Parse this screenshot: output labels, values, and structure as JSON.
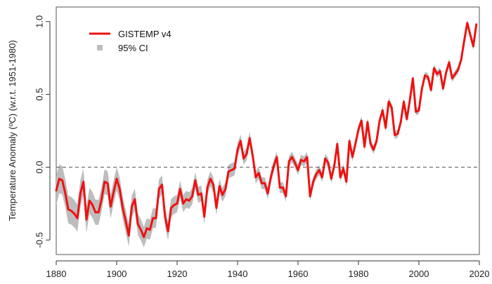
{
  "chart_data": {
    "type": "line",
    "title": "",
    "xlabel": "",
    "ylabel": "Temperature Anomaly (ºC) (w.r.t. 1951-1980)",
    "xlim": [
      1880,
      2020
    ],
    "ylim": [
      -0.6,
      1.1
    ],
    "xticks": [
      1880,
      1900,
      1920,
      1940,
      1960,
      1980,
      2000,
      2020
    ],
    "xtick_labels": [
      "1880",
      "1900",
      "1920",
      "1940",
      "1960",
      "1980",
      "2000",
      "2020"
    ],
    "yticks": [
      -0.5,
      0.0,
      0.5,
      1.0
    ],
    "ytick_labels": [
      "-0.5",
      "0.0",
      "0.5",
      "1.0"
    ],
    "reference_line": {
      "y": 0.0,
      "style": "dashed"
    },
    "legend": {
      "placement": "top-left",
      "entries": [
        {
          "label": "GISTEMP v4",
          "kind": "line",
          "color": "#ee1111"
        },
        {
          "label": "95% CI",
          "kind": "band",
          "color": "#bdbdbd"
        }
      ]
    },
    "series": [
      {
        "name": "GISTEMP v4",
        "color": "#ee1111",
        "years": [
          1880,
          1881,
          1882,
          1883,
          1884,
          1885,
          1886,
          1887,
          1888,
          1889,
          1890,
          1891,
          1892,
          1893,
          1894,
          1895,
          1896,
          1897,
          1898,
          1899,
          1900,
          1901,
          1902,
          1903,
          1904,
          1905,
          1906,
          1907,
          1908,
          1909,
          1910,
          1911,
          1912,
          1913,
          1914,
          1915,
          1916,
          1917,
          1918,
          1919,
          1920,
          1921,
          1922,
          1923,
          1924,
          1925,
          1926,
          1927,
          1928,
          1929,
          1930,
          1931,
          1932,
          1933,
          1934,
          1935,
          1936,
          1937,
          1938,
          1939,
          1940,
          1941,
          1942,
          1943,
          1944,
          1945,
          1946,
          1947,
          1948,
          1949,
          1950,
          1951,
          1952,
          1953,
          1954,
          1955,
          1956,
          1957,
          1958,
          1959,
          1960,
          1961,
          1962,
          1963,
          1964,
          1965,
          1966,
          1967,
          1968,
          1969,
          1970,
          1971,
          1972,
          1973,
          1974,
          1975,
          1976,
          1977,
          1978,
          1979,
          1980,
          1981,
          1982,
          1983,
          1984,
          1985,
          1986,
          1987,
          1988,
          1989,
          1990,
          1991,
          1992,
          1993,
          1994,
          1995,
          1996,
          1997,
          1998,
          1999,
          2000,
          2001,
          2002,
          2003,
          2004,
          2005,
          2006,
          2007,
          2008,
          2009,
          2010,
          2011,
          2012,
          2013,
          2014,
          2015,
          2016,
          2017,
          2018,
          2019
        ],
        "values": [
          -0.16,
          -0.08,
          -0.09,
          -0.18,
          -0.29,
          -0.3,
          -0.32,
          -0.35,
          -0.18,
          -0.1,
          -0.36,
          -0.23,
          -0.26,
          -0.31,
          -0.31,
          -0.22,
          -0.1,
          -0.11,
          -0.27,
          -0.17,
          -0.08,
          -0.15,
          -0.28,
          -0.37,
          -0.47,
          -0.27,
          -0.22,
          -0.39,
          -0.43,
          -0.48,
          -0.42,
          -0.43,
          -0.35,
          -0.35,
          -0.15,
          -0.12,
          -0.34,
          -0.44,
          -0.28,
          -0.26,
          -0.25,
          -0.15,
          -0.25,
          -0.22,
          -0.23,
          -0.2,
          -0.09,
          -0.19,
          -0.18,
          -0.34,
          -0.14,
          -0.08,
          -0.12,
          -0.28,
          -0.13,
          -0.19,
          -0.15,
          -0.03,
          -0.02,
          -0.01,
          0.12,
          0.18,
          0.06,
          0.09,
          0.2,
          0.08,
          -0.07,
          -0.04,
          -0.11,
          -0.11,
          -0.18,
          -0.07,
          0.01,
          0.07,
          -0.14,
          -0.14,
          -0.2,
          0.04,
          0.07,
          0.03,
          -0.02,
          0.05,
          0.04,
          0.07,
          -0.2,
          -0.1,
          -0.05,
          -0.02,
          -0.07,
          0.06,
          0.03,
          -0.08,
          0.01,
          0.16,
          -0.07,
          -0.01,
          -0.1,
          0.18,
          0.07,
          0.16,
          0.26,
          0.32,
          0.14,
          0.31,
          0.16,
          0.12,
          0.18,
          0.32,
          0.39,
          0.27,
          0.45,
          0.41,
          0.22,
          0.23,
          0.31,
          0.45,
          0.33,
          0.46,
          0.61,
          0.38,
          0.39,
          0.54,
          0.63,
          0.62,
          0.53,
          0.68,
          0.64,
          0.66,
          0.54,
          0.65,
          0.72,
          0.61,
          0.64,
          0.67,
          0.74,
          0.87,
          0.99,
          0.91,
          0.83,
          0.98
        ]
      }
    ],
    "confidence_band": {
      "name": "95% CI",
      "color": "#bdbdbd",
      "half_width_by_year": [
        [
          1880,
          0.1
        ],
        [
          1900,
          0.08
        ],
        [
          1920,
          0.06
        ],
        [
          1940,
          0.045
        ],
        [
          1960,
          0.035
        ],
        [
          1980,
          0.03
        ],
        [
          2000,
          0.025
        ],
        [
          2019,
          0.025
        ]
      ]
    }
  }
}
